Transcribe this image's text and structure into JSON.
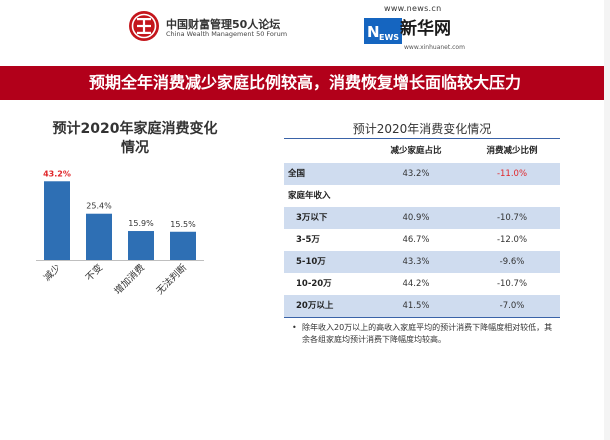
{
  "header": {
    "cwm_logo": {
      "cn": "中国财富管理50人论坛",
      "en": "China Wealth Management 50 Forum"
    },
    "xinhua_logo": {
      "url_top": "www.news.cn",
      "brand": "新华网",
      "url_bottom": "www.xinhuanet.com"
    }
  },
  "banner": {
    "title": "预期全年消费减少家庭比例较高，消费恢复增长面临较大压力",
    "color": "#b2001a"
  },
  "chart_data": [
    {
      "type": "bar",
      "title": "预计2020年家庭消费变化情况",
      "categories": [
        "减少",
        "不变",
        "增加消费",
        "无法判断"
      ],
      "values": [
        43.2,
        25.4,
        15.9,
        15.5
      ],
      "labels": [
        "43.2%",
        "25.4%",
        "15.9%",
        "15.5%"
      ],
      "highlight_index": 0,
      "bar_color": "#2e6fb4",
      "highlight_label_color": "#e0262a",
      "ylim": [
        0,
        45
      ],
      "grid": false
    },
    {
      "type": "table",
      "title": "预计2020年消费变化情况",
      "columns": [
        "",
        "减少家庭占比",
        "消费减少比例"
      ],
      "rows": [
        {
          "label": "全国",
          "share": "43.2%",
          "ratio": "-11.0%",
          "indent": false,
          "highlight": true
        },
        {
          "label": "家庭年收入",
          "share": "",
          "ratio": "",
          "indent": false,
          "highlight": false
        },
        {
          "label": "3万以下",
          "share": "40.9%",
          "ratio": "-10.7%",
          "indent": true,
          "highlight": false
        },
        {
          "label": "3-5万",
          "share": "46.7%",
          "ratio": "-12.0%",
          "indent": true,
          "highlight": false
        },
        {
          "label": "5-10万",
          "share": "43.3%",
          "ratio": "-9.6%",
          "indent": true,
          "highlight": false
        },
        {
          "label": "10-20万",
          "share": "44.2%",
          "ratio": "-10.7%",
          "indent": true,
          "highlight": false
        },
        {
          "label": "20万以上",
          "share": "41.5%",
          "ratio": "-7.0%",
          "indent": true,
          "highlight": false
        }
      ]
    }
  ],
  "note": {
    "bullet": "•",
    "text": "除年收入20万以上的高收入家庭平均的预计消费下降幅度相对较低，其余各组家庭均预计消费下降幅度均较高。"
  }
}
